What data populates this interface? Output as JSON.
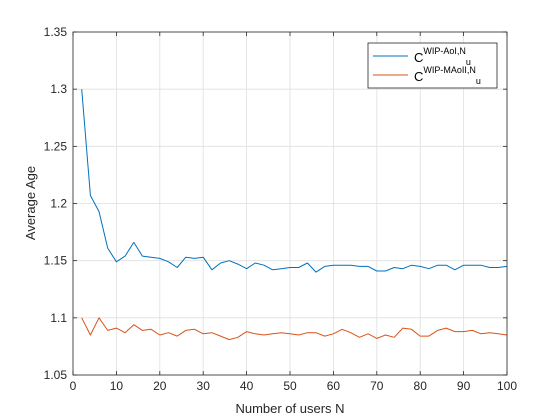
{
  "chart_data": {
    "type": "line",
    "title": "",
    "xlabel": "Number of users N",
    "ylabel": "Average Age",
    "xlim": [
      0,
      100
    ],
    "ylim": [
      1.05,
      1.35
    ],
    "xticks": [
      0,
      10,
      20,
      30,
      40,
      50,
      60,
      70,
      80,
      90,
      100
    ],
    "yticks": [
      1.05,
      1.1,
      1.15,
      1.2,
      1.25,
      1.3,
      1.35
    ],
    "xtick_labels": [
      "0",
      "10",
      "20",
      "30",
      "40",
      "50",
      "60",
      "70",
      "80",
      "90",
      "100"
    ],
    "ytick_labels": [
      "1.05",
      "1.1",
      "1.15",
      "1.2",
      "1.25",
      "1.3",
      "1.35"
    ],
    "grid": true,
    "legend_position": "top-right",
    "x": [
      2,
      4,
      6,
      8,
      10,
      12,
      14,
      16,
      18,
      20,
      22,
      24,
      26,
      28,
      30,
      32,
      34,
      36,
      38,
      40,
      42,
      44,
      46,
      48,
      50,
      52,
      54,
      56,
      58,
      60,
      62,
      64,
      66,
      68,
      70,
      72,
      74,
      76,
      78,
      80,
      82,
      84,
      86,
      88,
      90,
      92,
      94,
      96,
      98,
      100
    ],
    "series": [
      {
        "name_base": "C",
        "name_sup": "WIP-AoI,N",
        "name_sub": "u",
        "color": "#0072BD",
        "values": [
          1.3,
          1.207,
          1.193,
          1.161,
          1.149,
          1.154,
          1.166,
          1.154,
          1.153,
          1.152,
          1.149,
          1.144,
          1.153,
          1.152,
          1.153,
          1.142,
          1.148,
          1.15,
          1.147,
          1.143,
          1.148,
          1.146,
          1.142,
          1.143,
          1.144,
          1.144,
          1.148,
          1.14,
          1.145,
          1.146,
          1.146,
          1.146,
          1.145,
          1.145,
          1.141,
          1.141,
          1.144,
          1.143,
          1.146,
          1.145,
          1.143,
          1.146,
          1.146,
          1.142,
          1.146,
          1.146,
          1.146,
          1.144,
          1.144,
          1.145
        ]
      },
      {
        "name_base": "C",
        "name_sup": "WIP-MAoII,N",
        "name_sub": "u",
        "color": "#D95319",
        "values": [
          1.1,
          1.085,
          1.1,
          1.089,
          1.091,
          1.087,
          1.094,
          1.089,
          1.09,
          1.085,
          1.087,
          1.084,
          1.089,
          1.09,
          1.086,
          1.087,
          1.084,
          1.081,
          1.083,
          1.088,
          1.086,
          1.085,
          1.086,
          1.087,
          1.086,
          1.085,
          1.087,
          1.087,
          1.084,
          1.086,
          1.09,
          1.087,
          1.083,
          1.086,
          1.082,
          1.085,
          1.083,
          1.091,
          1.09,
          1.084,
          1.084,
          1.089,
          1.091,
          1.088,
          1.088,
          1.089,
          1.086,
          1.087,
          1.086,
          1.085
        ]
      }
    ]
  }
}
